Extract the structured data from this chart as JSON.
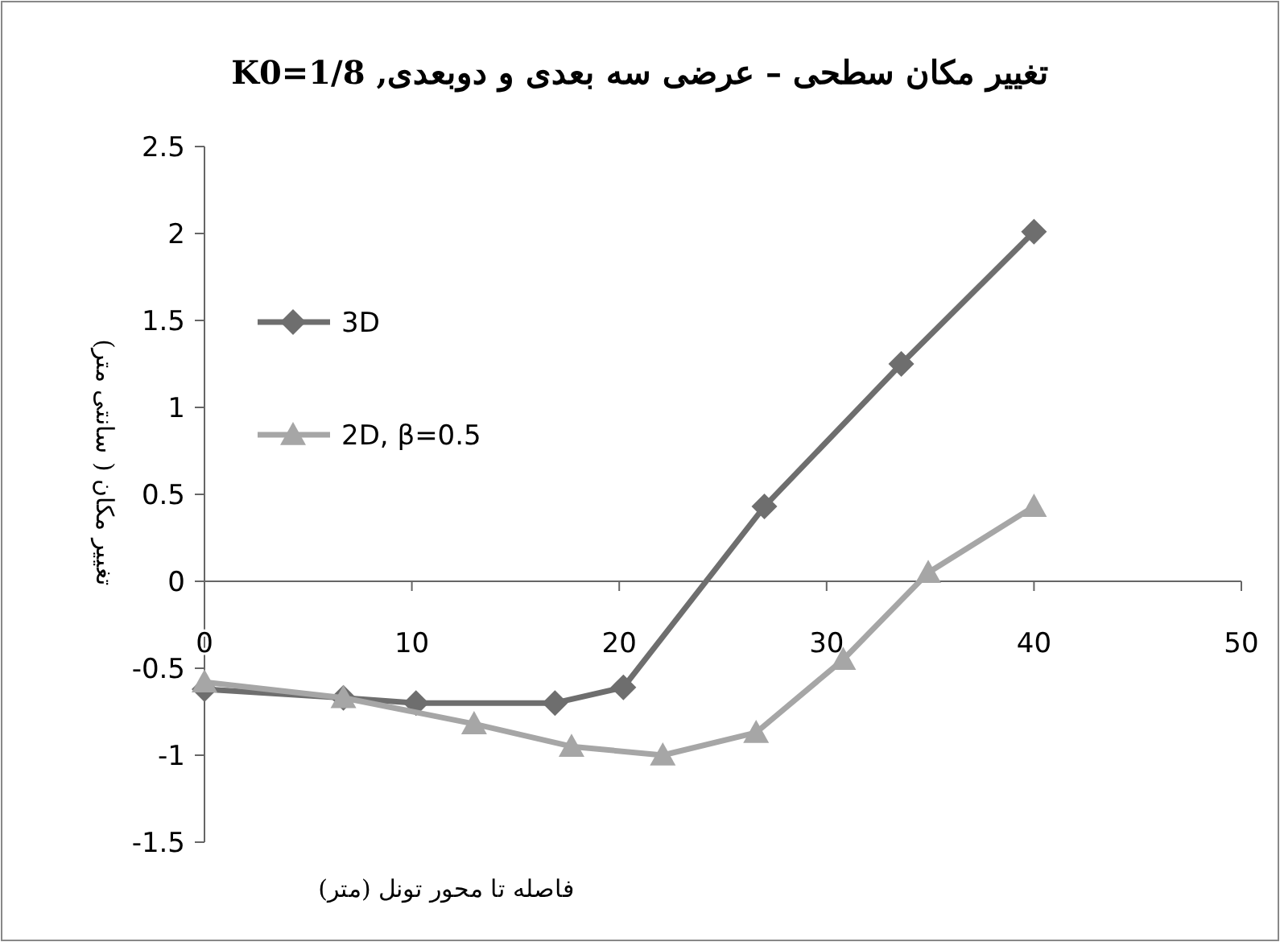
{
  "chart_data": {
    "type": "line",
    "title": "تغییر مکان سطحی – عرضی سه بعدی و دوبعدی, K0=1/8",
    "xlabel": "فاصله تا محور تونل (متر)",
    "ylabel": "تغییر مکان ( سانتی متر)",
    "xlim": [
      0,
      50
    ],
    "xticks": [
      0,
      10,
      20,
      30,
      40,
      50
    ],
    "ylim": [
      -1.5,
      2.5
    ],
    "yticks": [
      -1.5,
      -1,
      -0.5,
      0,
      0.5,
      1,
      1.5,
      2,
      2.5
    ],
    "grid": false,
    "legend": "top left",
    "line_style": "solid",
    "series": [
      {
        "name": "3D",
        "color": "#6e6e6e",
        "marker": "diamond",
        "x": [
          0,
          6.7,
          10.2,
          16.9,
          20.2,
          27,
          33.6,
          40
        ],
        "values": [
          -0.62,
          -0.67,
          -0.7,
          -0.7,
          -0.61,
          0.43,
          1.25,
          2.01
        ]
      },
      {
        "name": "2D, β=0.5",
        "color": "#a6a6a6",
        "marker": "triangle",
        "x": [
          0,
          6.7,
          13,
          17.7,
          22.1,
          26.6,
          30.8,
          34.9,
          40
        ],
        "values": [
          -0.58,
          -0.67,
          -0.82,
          -0.95,
          -1,
          -0.87,
          -0.45,
          0.05,
          0.43
        ]
      }
    ]
  }
}
